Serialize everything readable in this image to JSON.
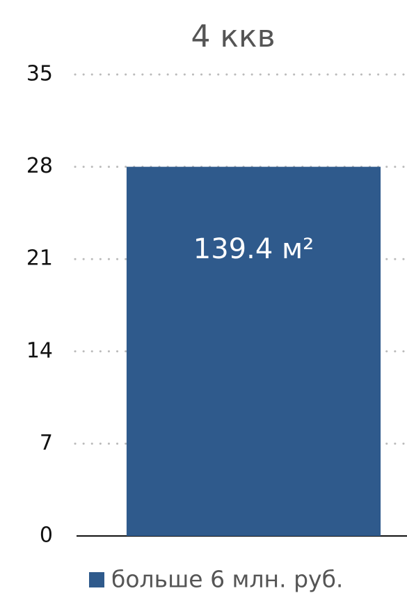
{
  "chart_data": {
    "type": "bar",
    "title": "4 ккв",
    "categories": [
      null
    ],
    "series": [
      {
        "name": "больше 6 млн. руб.",
        "color": "#2f5a8c",
        "values": [
          28
        ]
      }
    ],
    "annotations": [
      "139.4 м²"
    ],
    "ylim": [
      0,
      35
    ],
    "yticks": [
      0,
      7,
      14,
      21,
      28,
      35
    ],
    "grid": true,
    "legend": "bottom"
  }
}
